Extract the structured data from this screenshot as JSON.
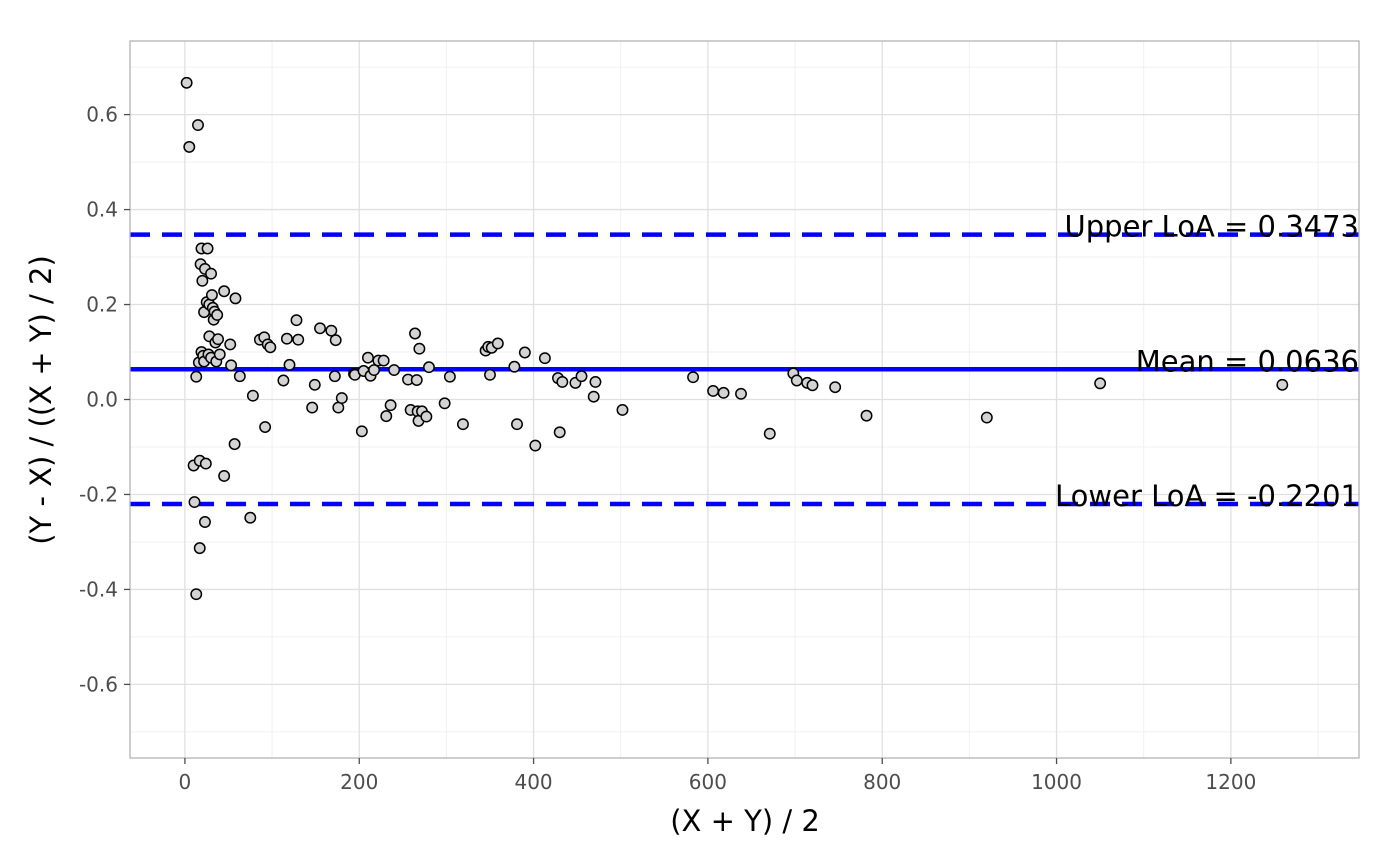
{
  "chart_data": {
    "type": "scatter",
    "title": "",
    "xlabel": "(X + Y) / 2",
    "ylabel": "(Y - X) / ((X + Y) / 2)",
    "xlim": [
      -63,
      1347
    ],
    "ylim": [
      -0.755,
      0.755
    ],
    "x_ticks": [
      0,
      200,
      400,
      600,
      800,
      1000,
      1200
    ],
    "x_tick_labels": [
      "0",
      "200",
      "400",
      "600",
      "800",
      "1000",
      "1200"
    ],
    "y_ticks": [
      -0.6,
      -0.4,
      -0.2,
      0.0,
      0.2,
      0.4,
      0.6
    ],
    "y_tick_labels": [
      "-0.6",
      "-0.4",
      "-0.2",
      "0.0",
      "0.2",
      "0.4",
      "0.6"
    ],
    "grid": true,
    "point_fill": "#d3d3d3",
    "point_stroke": "#000000",
    "reference_lines": [
      {
        "name": "Upper LoA",
        "value": 0.3473,
        "label": "Upper LoA = 0.3473",
        "style": "dashed",
        "color": "#0000ff"
      },
      {
        "name": "Mean",
        "value": 0.0636,
        "label": "Mean = 0.0636",
        "style": "solid",
        "color": "#0000ff"
      },
      {
        "name": "Lower LoA",
        "value": -0.2201,
        "label": "Lower LoA = -0.2201",
        "style": "dashed",
        "color": "#0000ff"
      }
    ],
    "points": [
      [
        2,
        0.667
      ],
      [
        5,
        0.532
      ],
      [
        15,
        0.578
      ],
      [
        10,
        -0.139
      ],
      [
        11,
        -0.216
      ],
      [
        13,
        -0.41
      ],
      [
        13,
        0.048
      ],
      [
        16,
        0.078
      ],
      [
        17,
        -0.129
      ],
      [
        17,
        -0.313
      ],
      [
        18,
        0.285
      ],
      [
        19,
        0.318
      ],
      [
        19,
        0.1
      ],
      [
        20,
        0.25
      ],
      [
        21,
        0.092
      ],
      [
        22,
        0.08
      ],
      [
        22,
        0.184
      ],
      [
        23,
        -0.258
      ],
      [
        23,
        0.275
      ],
      [
        24,
        -0.135
      ],
      [
        25,
        0.205
      ],
      [
        26,
        0.318
      ],
      [
        27,
        0.095
      ],
      [
        28,
        0.133
      ],
      [
        28,
        0.2
      ],
      [
        30,
        0.265
      ],
      [
        30,
        0.088
      ],
      [
        31,
        0.22
      ],
      [
        32,
        0.193
      ],
      [
        33,
        0.168
      ],
      [
        34,
        0.185
      ],
      [
        35,
        0.12
      ],
      [
        36,
        0.08
      ],
      [
        37,
        0.178
      ],
      [
        38,
        0.127
      ],
      [
        40,
        0.095
      ],
      [
        45,
        -0.161
      ],
      [
        45,
        0.228
      ],
      [
        52,
        0.116
      ],
      [
        53,
        0.072
      ],
      [
        57,
        -0.094
      ],
      [
        58,
        0.213
      ],
      [
        63,
        0.049
      ],
      [
        75,
        -0.249
      ],
      [
        78,
        0.008
      ],
      [
        86,
        0.126
      ],
      [
        91,
        0.131
      ],
      [
        92,
        -0.058
      ],
      [
        95,
        0.116
      ],
      [
        98,
        0.11
      ],
      [
        113,
        0.04
      ],
      [
        117,
        0.128
      ],
      [
        120,
        0.073
      ],
      [
        128,
        0.167
      ],
      [
        130,
        0.126
      ],
      [
        146,
        -0.017
      ],
      [
        149,
        0.031
      ],
      [
        155,
        0.15
      ],
      [
        168,
        0.145
      ],
      [
        172,
        0.049
      ],
      [
        173,
        0.125
      ],
      [
        176,
        -0.017
      ],
      [
        180,
        0.003
      ],
      [
        194,
        0.054
      ],
      [
        195,
        0.052
      ],
      [
        203,
        -0.067
      ],
      [
        205,
        0.06
      ],
      [
        210,
        0.088
      ],
      [
        213,
        0.05
      ],
      [
        217,
        0.062
      ],
      [
        222,
        0.082
      ],
      [
        228,
        0.082
      ],
      [
        231,
        -0.035
      ],
      [
        236,
        -0.012
      ],
      [
        240,
        0.062
      ],
      [
        256,
        0.042
      ],
      [
        259,
        -0.022
      ],
      [
        264,
        0.139
      ],
      [
        266,
        0.041
      ],
      [
        267,
        -0.025
      ],
      [
        268,
        -0.045
      ],
      [
        269,
        0.107
      ],
      [
        272,
        -0.025
      ],
      [
        277,
        -0.036
      ],
      [
        280,
        0.068
      ],
      [
        298,
        -0.008
      ],
      [
        304,
        0.048
      ],
      [
        319,
        -0.052
      ],
      [
        345,
        0.103
      ],
      [
        348,
        0.111
      ],
      [
        350,
        0.052
      ],
      [
        352,
        0.109
      ],
      [
        359,
        0.118
      ],
      [
        378,
        0.069
      ],
      [
        381,
        -0.052
      ],
      [
        390,
        0.099
      ],
      [
        402,
        -0.097
      ],
      [
        413,
        0.087
      ],
      [
        428,
        0.045
      ],
      [
        430,
        -0.069
      ],
      [
        433,
        0.037
      ],
      [
        448,
        0.035
      ],
      [
        455,
        0.049
      ],
      [
        469,
        0.006
      ],
      [
        471,
        0.037
      ],
      [
        502,
        -0.022
      ],
      [
        583,
        0.047
      ],
      [
        606,
        0.018
      ],
      [
        618,
        0.014
      ],
      [
        638,
        0.012
      ],
      [
        671,
        -0.072
      ],
      [
        698,
        0.055
      ],
      [
        702,
        0.04
      ],
      [
        714,
        0.035
      ],
      [
        720,
        0.03
      ],
      [
        746,
        0.026
      ],
      [
        782,
        -0.034
      ],
      [
        920,
        -0.038
      ],
      [
        1050,
        0.034
      ],
      [
        1259,
        0.031
      ]
    ]
  }
}
